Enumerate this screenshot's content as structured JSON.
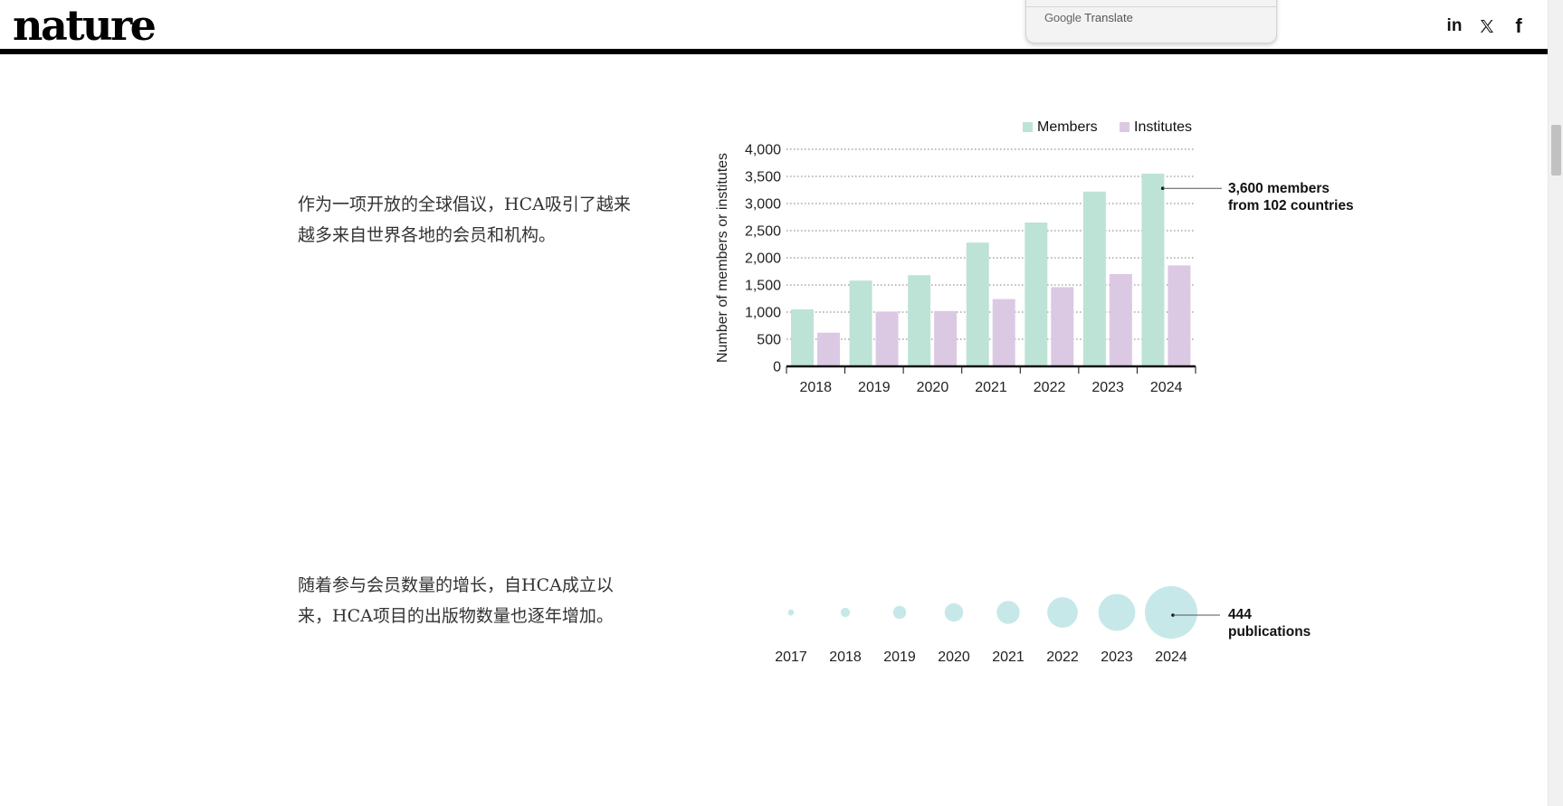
{
  "header": {
    "logo": "nature",
    "social": {
      "linkedin": "in",
      "x": "𝕏",
      "facebook": "f"
    }
  },
  "translate_popup": {
    "brand_google": "Google",
    "brand_translate": "Translate"
  },
  "paragraphs": [
    "作为一项开放的全球倡议，HCA吸引了越来越多来自世界各地的会员和机构。",
    "随着参与会员数量的增长，自HCA成立以来，HCA项目的出版物数量也逐年增加。"
  ],
  "chart_data": [
    {
      "type": "bar",
      "categories": [
        "2018",
        "2019",
        "2020",
        "2021",
        "2022",
        "2023",
        "2024"
      ],
      "series": [
        {
          "name": "Members",
          "values": [
            1050,
            1580,
            1680,
            2280,
            2650,
            3220,
            3550
          ],
          "color": "#bde3d6"
        },
        {
          "name": "Institutes",
          "values": [
            620,
            1010,
            1020,
            1240,
            1460,
            1700,
            1860
          ],
          "color": "#dbc9e4"
        }
      ],
      "ylabel": "Number of members or institutes",
      "ylim": [
        0,
        4000
      ],
      "yticks": [
        0,
        500,
        1000,
        1500,
        2000,
        2500,
        3000,
        3500,
        4000
      ],
      "ytick_labels": [
        "0",
        "500",
        "1,000",
        "1,500",
        "2,000",
        "2,500",
        "3,000",
        "3,500",
        "4,000"
      ],
      "grid": true,
      "legend": "top-right",
      "annotation": {
        "category": "2024",
        "series": "Members",
        "value": 3280,
        "lines": [
          "3,600 members",
          "from 102 countries"
        ]
      }
    },
    {
      "type": "scatter",
      "x": [
        "2017",
        "2018",
        "2019",
        "2020",
        "2021",
        "2022",
        "2023",
        "2024"
      ],
      "values": [
        6,
        14,
        28,
        55,
        85,
        150,
        220,
        444
      ],
      "color": "#c7e8e9",
      "annotation": {
        "category": "2024",
        "lines": [
          "444",
          "publications"
        ]
      }
    }
  ]
}
